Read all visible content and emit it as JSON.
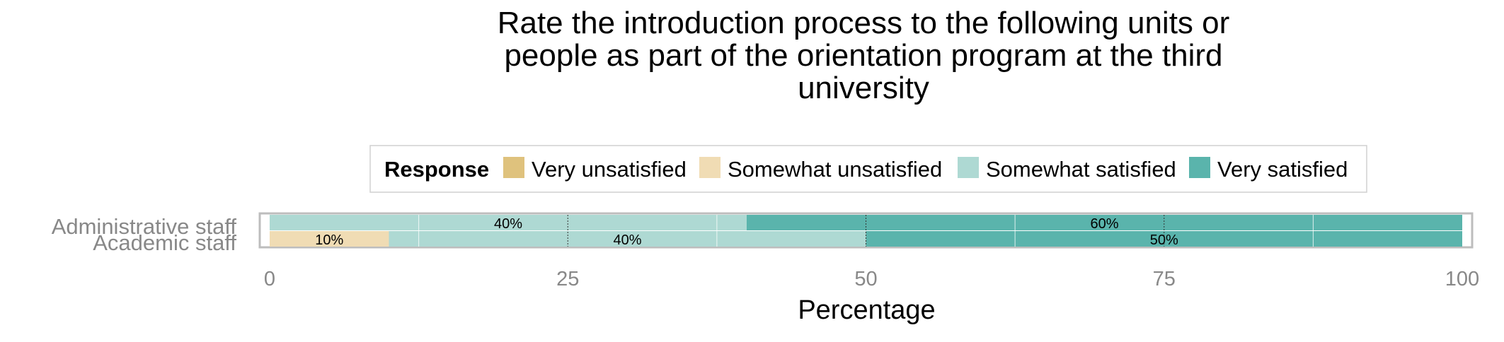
{
  "chart_data": {
    "type": "bar",
    "orientation": "horizontal",
    "stacked": true,
    "title": "Rate the introduction process to the following units or\npeople as part of the orientation program at the third\nuniversity",
    "xlabel": "Percentage",
    "ylabel": "",
    "xlim": [
      0,
      100
    ],
    "xticks": [
      0,
      25,
      50,
      75,
      100
    ],
    "grid": true,
    "legend": {
      "title": "Response",
      "placement": "top",
      "entries": [
        {
          "name": "Very unsatisfied",
          "color": "#dfc27d"
        },
        {
          "name": "Somewhat unsatisfied",
          "color": "#f0dcb4"
        },
        {
          "name": "Somewhat satisfied",
          "color": "#aed9d3"
        },
        {
          "name": "Very satisfied",
          "color": "#5ab4ac"
        }
      ]
    },
    "categories": [
      "Administrative staff",
      "Academic staff"
    ],
    "series": [
      {
        "name": "Very unsatisfied",
        "color": "#dfc27d",
        "values": [
          0,
          0
        ]
      },
      {
        "name": "Somewhat unsatisfied",
        "color": "#f0dcb4",
        "values": [
          0,
          10
        ]
      },
      {
        "name": "Somewhat satisfied",
        "color": "#aed9d3",
        "values": [
          40,
          40
        ]
      },
      {
        "name": "Very satisfied",
        "color": "#5ab4ac",
        "values": [
          60,
          50
        ]
      }
    ],
    "data_labels": [
      [
        "",
        "",
        "40%",
        "60%"
      ],
      [
        "",
        "10%",
        "40%",
        "50%"
      ]
    ]
  }
}
